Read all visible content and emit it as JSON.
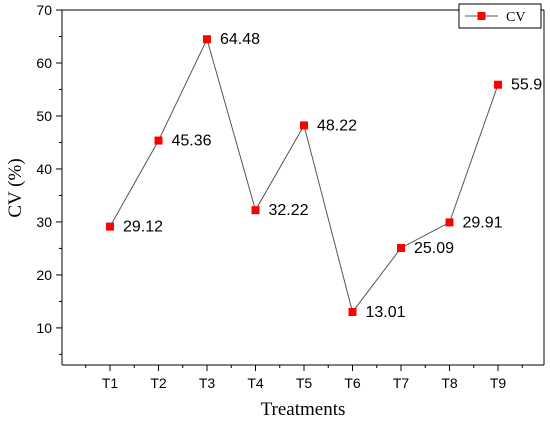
{
  "chart_data": {
    "type": "line",
    "xlabel": "Treatments",
    "ylabel": "CV (%)",
    "categories": [
      "T1",
      "T2",
      "T3",
      "T4",
      "T5",
      "T6",
      "T7",
      "T8",
      "T9"
    ],
    "series": [
      {
        "name": "CV",
        "values": [
          29.12,
          45.36,
          64.48,
          32.22,
          48.22,
          13.01,
          25.09,
          29.91,
          55.9
        ],
        "color": "#ff0000",
        "line_color": "#555555",
        "marker": "square"
      }
    ],
    "data_labels": [
      "29.12",
      "45.36",
      "64.48",
      "32.22",
      "48.22",
      "13.01",
      "25.09",
      "29.91",
      "55.9"
    ],
    "ylim": [
      3,
      70
    ],
    "yticks": [
      10,
      20,
      30,
      40,
      50,
      60,
      70
    ],
    "legend": {
      "placement": "top-right",
      "entries": [
        "CV"
      ]
    },
    "grid": false
  }
}
